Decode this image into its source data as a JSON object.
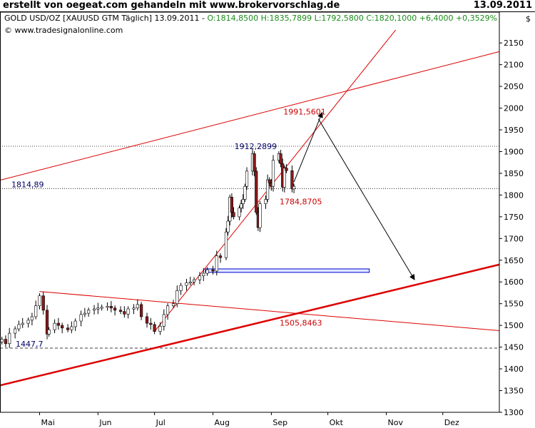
{
  "header": {
    "title": "erstellt von oegeat.com gehandeln mit www.brokervorschlag.de",
    "date": "13.09.2011",
    "instrument": "GOLD USD/OZ [XAUUSD GTM  Täglich] 13.09.2011 -",
    "ohlc": "O:1814,8500 H:1835,7899 L:1792,5800 C:1820,1000 +6,4000 +0,3529%",
    "copyright": "© www.tradesignalonline.com",
    "currency": "$",
    "colors": {
      "up_text": "#1a8c1a",
      "trend_lines": "#dd0000",
      "channel_box": "#0000cc"
    }
  },
  "chart_data": {
    "type": "candlestick",
    "y_axis": {
      "range": [
        1300,
        2170
      ],
      "ticks": [
        1300,
        1350,
        1400,
        1450,
        1500,
        1550,
        1600,
        1650,
        1700,
        1750,
        1800,
        1850,
        1900,
        1950,
        2000,
        2050,
        2100,
        2150
      ],
      "side": "right"
    },
    "x_axis": {
      "range": [
        "2011-04-10",
        "2011-12-31"
      ],
      "month_labels": [
        {
          "label": "Mai",
          "date": "2011-05-01"
        },
        {
          "label": "Jun",
          "date": "2011-06-01"
        },
        {
          "label": "Jul",
          "date": "2011-07-01"
        },
        {
          "label": "Aug",
          "date": "2011-08-01"
        },
        {
          "label": "Sep",
          "date": "2011-09-01"
        },
        {
          "label": "Okt",
          "date": "2011-10-01"
        },
        {
          "label": "Nov",
          "date": "2011-11-01"
        },
        {
          "label": "Dez",
          "date": "2011-12-01"
        }
      ]
    },
    "closes": [
      [
        "2011-04-11",
        1468
      ],
      [
        "2011-04-13",
        1458
      ],
      [
        "2011-04-15",
        1482
      ],
      [
        "2011-04-18",
        1492
      ],
      [
        "2011-04-20",
        1502
      ],
      [
        "2011-04-22",
        1505
      ],
      [
        "2011-04-25",
        1512
      ],
      [
        "2011-04-27",
        1520
      ],
      [
        "2011-04-29",
        1545
      ],
      [
        "2011-05-01",
        1568
      ],
      [
        "2011-05-03",
        1535
      ],
      [
        "2011-05-05",
        1480
      ],
      [
        "2011-05-06",
        1490
      ],
      [
        "2011-05-09",
        1505
      ],
      [
        "2011-05-11",
        1500
      ],
      [
        "2011-05-13",
        1494
      ],
      [
        "2011-05-16",
        1490
      ],
      [
        "2011-05-18",
        1497
      ],
      [
        "2011-05-20",
        1510
      ],
      [
        "2011-05-23",
        1525
      ],
      [
        "2011-05-25",
        1528
      ],
      [
        "2011-05-27",
        1535
      ],
      [
        "2011-05-30",
        1538
      ],
      [
        "2011-06-01",
        1540
      ],
      [
        "2011-06-03",
        1542
      ],
      [
        "2011-06-06",
        1544
      ],
      [
        "2011-06-08",
        1540
      ],
      [
        "2011-06-10",
        1535
      ],
      [
        "2011-06-13",
        1532
      ],
      [
        "2011-06-15",
        1526
      ],
      [
        "2011-06-17",
        1538
      ],
      [
        "2011-06-20",
        1540
      ],
      [
        "2011-06-22",
        1548
      ],
      [
        "2011-06-24",
        1520
      ],
      [
        "2011-06-27",
        1505
      ],
      [
        "2011-06-29",
        1502
      ],
      [
        "2011-07-01",
        1486
      ],
      [
        "2011-07-04",
        1498
      ],
      [
        "2011-07-06",
        1525
      ],
      [
        "2011-07-08",
        1545
      ],
      [
        "2011-07-11",
        1550
      ],
      [
        "2011-07-13",
        1580
      ],
      [
        "2011-07-15",
        1592
      ],
      [
        "2011-07-18",
        1598
      ],
      [
        "2011-07-20",
        1600
      ],
      [
        "2011-07-22",
        1605
      ],
      [
        "2011-07-25",
        1614
      ],
      [
        "2011-07-27",
        1620
      ],
      [
        "2011-07-29",
        1628
      ],
      [
        "2011-08-01",
        1625
      ],
      [
        "2011-08-03",
        1660
      ],
      [
        "2011-08-05",
        1656
      ],
      [
        "2011-08-08",
        1715
      ],
      [
        "2011-08-09",
        1740
      ],
      [
        "2011-08-10",
        1795
      ],
      [
        "2011-08-11",
        1760
      ],
      [
        "2011-08-12",
        1750
      ],
      [
        "2011-08-15",
        1770
      ],
      [
        "2011-08-16",
        1780
      ],
      [
        "2011-08-17",
        1790
      ],
      [
        "2011-08-18",
        1820
      ],
      [
        "2011-08-19",
        1855
      ],
      [
        "2011-08-22",
        1895
      ],
      [
        "2011-08-23",
        1855
      ],
      [
        "2011-08-24",
        1760
      ],
      [
        "2011-08-25",
        1725
      ],
      [
        "2011-08-26",
        1780
      ],
      [
        "2011-08-29",
        1790
      ],
      [
        "2011-08-30",
        1835
      ],
      [
        "2011-08-31",
        1828
      ],
      [
        "2011-09-01",
        1820
      ],
      [
        "2011-09-02",
        1880
      ],
      [
        "2011-09-05",
        1895
      ],
      [
        "2011-09-06",
        1872
      ],
      [
        "2011-09-07",
        1818
      ],
      [
        "2011-09-08",
        1862
      ],
      [
        "2011-09-09",
        1856
      ],
      [
        "2011-09-12",
        1814
      ],
      [
        "2011-09-13",
        1820
      ]
    ],
    "last_ohlc": {
      "open": 1814.85,
      "high": 1835.7899,
      "low": 1792.58,
      "close": 1820.1
    },
    "horizontal_levels": [
      {
        "label": "1814,89",
        "value": 1814.89
      },
      {
        "label": "1447,7",
        "value": 1447.7
      }
    ],
    "annotations": [
      {
        "label": "1912,2899",
        "date": "2011-08-23",
        "value": 1912.2899,
        "color": "#000066"
      },
      {
        "label": "1991,5601",
        "date": "2011-09-18",
        "value": 1991.5601,
        "color": "#cc0000"
      },
      {
        "label": "1784,8705",
        "date": "2011-09-16",
        "value": 1784.8705,
        "color": "#cc0000"
      },
      {
        "label": "1505,8463",
        "date": "2011-09-16",
        "value": 1505.8463,
        "color": "#cc0000"
      }
    ],
    "trend_lines": [
      {
        "name": "upper-channel",
        "from": [
          "2011-04-10",
          1834
        ],
        "to": [
          "2011-12-31",
          2130
        ],
        "width": 1
      },
      {
        "name": "steep-support",
        "from": [
          "2011-07-01",
          1486
        ],
        "to": [
          "2011-11-06",
          2180
        ],
        "width": 1
      },
      {
        "name": "falling-line",
        "from": [
          "2011-05-01",
          1578
        ],
        "to": [
          "2011-12-31",
          1488
        ],
        "width": 1
      },
      {
        "name": "long-support",
        "from": [
          "2011-04-10",
          1362
        ],
        "to": [
          "2011-12-31",
          1640
        ],
        "width": 2.5
      }
    ],
    "arrows": [
      {
        "name": "arrow-up",
        "from": [
          "2011-09-13",
          1830
        ],
        "to": [
          "2011-09-28",
          1990
        ]
      },
      {
        "name": "arrow-down",
        "from": [
          "2011-09-26",
          1975
        ],
        "to": [
          "2011-11-16",
          1605
        ]
      }
    ],
    "channel_box": {
      "from": [
        "2011-07-28",
        1630
      ],
      "to": [
        "2011-10-23",
        1622
      ]
    }
  }
}
